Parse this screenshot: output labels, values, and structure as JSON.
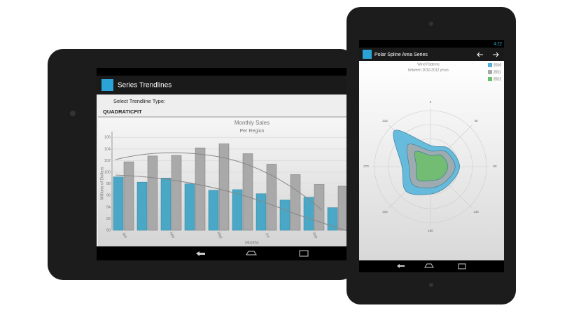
{
  "left_screen": {
    "title": "Series Trendlines",
    "select_label": "Select Trendline Type:",
    "selected": "QUADRATICFIT",
    "chart": {
      "type": "bar",
      "title": "Monthly Sales",
      "subtitle": "Per Region",
      "x_label": "Months",
      "y_label": "Millions of Dollars",
      "categories": [
        "Jan",
        null,
        "Mar",
        null,
        "May",
        null,
        "Jul",
        null,
        "Sep",
        null
      ],
      "series": [
        {
          "color": "#4aa8c6",
          "values": [
            99.2,
            98.3,
            99.0,
            98.0,
            96.9,
            97.0,
            96.3,
            95.2,
            95.7,
            93.9
          ]
        },
        {
          "color": "#a9a9a9",
          "values": [
            101.8,
            102.8,
            102.9,
            104.2,
            104.9,
            103.2,
            101.4,
            99.6,
            97.9,
            97.6
          ]
        }
      ],
      "ylim": [
        90,
        107
      ],
      "yticks": [
        90,
        92,
        94,
        96,
        98,
        100,
        102,
        104,
        106
      ]
    }
  },
  "right_screen": {
    "title": "Polar Spline Area Series",
    "time": "4:22",
    "chart": {
      "type": "polar_area",
      "title": "Wind Patterns",
      "subtitle": "between 2010-2012 years",
      "angles": [
        0,
        45,
        90,
        135,
        180,
        225,
        270,
        315
      ],
      "rlim": [
        0,
        100
      ],
      "series": [
        {
          "name": "2010",
          "color": "#4fb3d9",
          "values": [
            38,
            46,
            52,
            46,
            49,
            62,
            51,
            91
          ]
        },
        {
          "name": "2011",
          "color": "#a8a8a8",
          "values": [
            28,
            38,
            44,
            38,
            38,
            45,
            38,
            56
          ]
        },
        {
          "name": "2012",
          "color": "#6abf69",
          "values": [
            20,
            28,
            31,
            28,
            25,
            33,
            25,
            38
          ]
        }
      ]
    }
  }
}
